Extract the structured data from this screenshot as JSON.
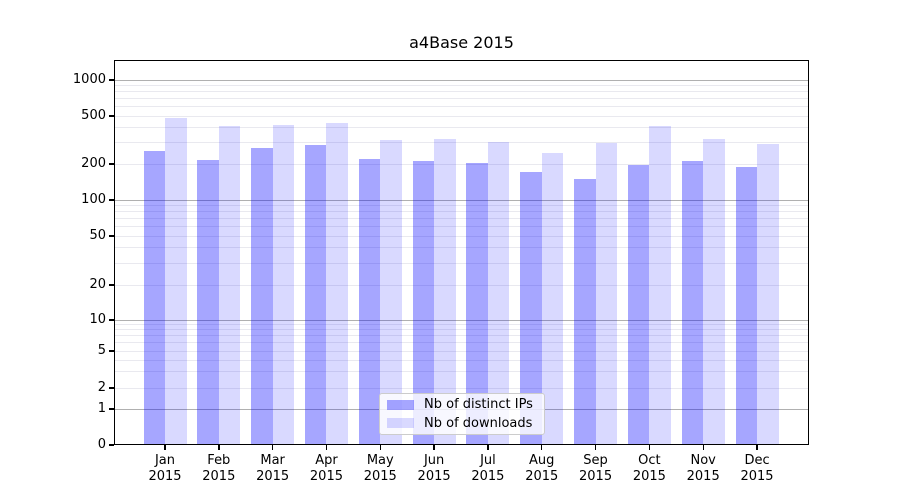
{
  "figure": {
    "title": "a4Base 2015"
  },
  "chart_data": {
    "type": "bar",
    "title": "a4Base 2015",
    "categories": [
      "Jan",
      "Feb",
      "Mar",
      "Apr",
      "May",
      "Jun",
      "Jul",
      "Aug",
      "Sep",
      "Oct",
      "Nov",
      "Dec"
    ],
    "year_label": "2015",
    "series": [
      {
        "name": "Nb of distinct IPs",
        "color": "rgba(0,0,255,0.35)",
        "values": [
          255,
          215,
          270,
          290,
          218,
          210,
          205,
          172,
          149,
          196,
          210,
          187
        ]
      },
      {
        "name": "Nb of downloads",
        "color": "rgba(0,0,255,0.15)",
        "values": [
          485,
          415,
          420,
          435,
          315,
          320,
          303,
          245,
          300,
          410,
          323,
          291
        ]
      }
    ],
    "xlabel": "",
    "ylabel": "",
    "yscale": "asinh-like (log spacing with 0 baseline)",
    "ylim": [
      0,
      1450
    ],
    "y_ticks": [
      0,
      1,
      2,
      5,
      10,
      20,
      50,
      100,
      200,
      500,
      1000
    ],
    "y_gridlines_major": [
      1,
      10,
      100,
      1000
    ],
    "y_gridlines_minor": [
      2,
      3,
      4,
      5,
      6,
      7,
      8,
      9,
      20,
      30,
      40,
      50,
      60,
      70,
      80,
      90,
      200,
      300,
      400,
      500,
      600,
      700,
      800,
      900
    ],
    "grid": "on",
    "legend_position": "inside, lower center",
    "scale_anchors": [
      [
        0,
        385
      ],
      [
        1,
        349
      ],
      [
        2,
        328
      ],
      [
        5,
        291
      ],
      [
        10,
        260
      ],
      [
        20,
        225
      ],
      [
        50,
        176
      ],
      [
        100,
        140
      ],
      [
        200,
        104
      ],
      [
        500,
        56
      ],
      [
        1000,
        20
      ]
    ],
    "colors": {
      "bar_distinct_ips": "rgba(0,0,255,0.35)",
      "bar_downloads": "rgba(0,0,255,0.15)",
      "grid_major": "#b0b0b0",
      "grid_minor": "#e9e9ef",
      "spine": "#000000",
      "text": "#000000",
      "legend_border": "#cccccc"
    }
  }
}
